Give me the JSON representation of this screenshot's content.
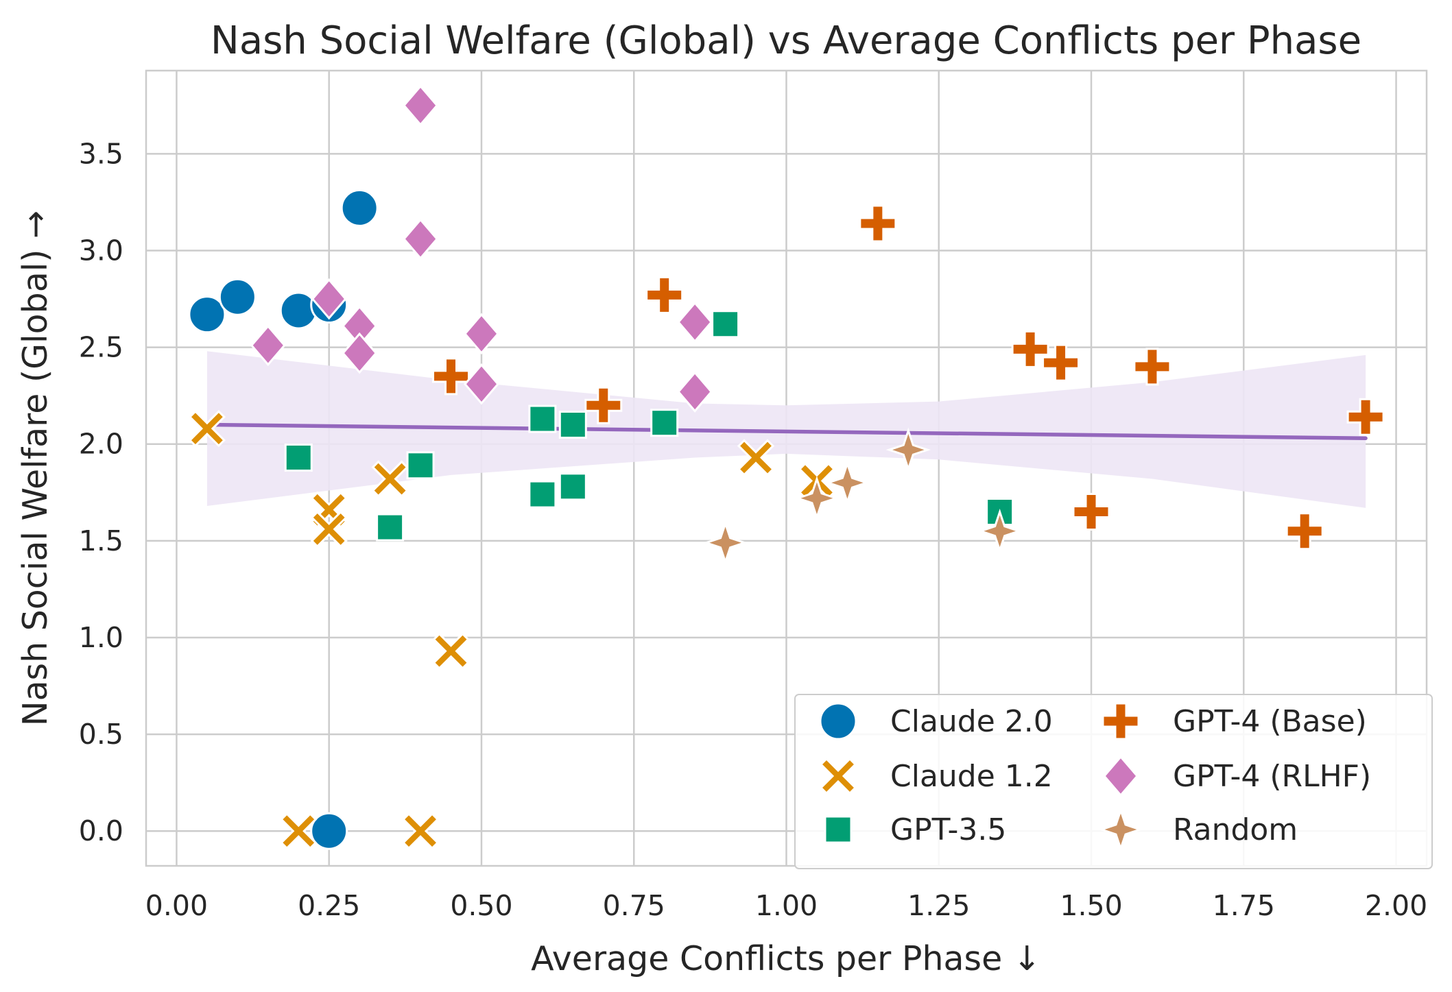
{
  "chart_data": {
    "type": "scatter",
    "title": "Nash Social Welfare (Global) vs Average Conflicts per Phase",
    "xlabel": "Average Conflicts per Phase ↓",
    "ylabel": "Nash Social Welfare (Global) →",
    "xlim": [
      -0.05,
      2.05
    ],
    "ylim": [
      -0.18,
      3.93
    ],
    "xticks": [
      "0.00",
      "0.25",
      "0.50",
      "0.75",
      "1.00",
      "1.25",
      "1.50",
      "1.75",
      "2.00"
    ],
    "yticks": [
      "0.0",
      "0.5",
      "1.0",
      "1.5",
      "2.0",
      "2.5",
      "3.0",
      "3.5"
    ],
    "grid": true,
    "legend_position": "lower-right",
    "legend_columns": 2,
    "series": [
      {
        "name": "Claude 2.0",
        "marker": "circle",
        "color": "#0173b2",
        "points": [
          [
            0.05,
            2.67
          ],
          [
            0.1,
            2.76
          ],
          [
            0.2,
            2.69
          ],
          [
            0.25,
            2.72
          ],
          [
            0.3,
            3.22
          ],
          [
            0.25,
            0.0
          ]
        ]
      },
      {
        "name": "Claude 1.2",
        "marker": "x",
        "color": "#de8f05",
        "points": [
          [
            0.05,
            2.08
          ],
          [
            0.2,
            0.0
          ],
          [
            0.25,
            1.66
          ],
          [
            0.25,
            1.56
          ],
          [
            0.35,
            1.82
          ],
          [
            0.4,
            0.0
          ],
          [
            0.45,
            0.93
          ],
          [
            0.95,
            1.93
          ],
          [
            1.05,
            1.81
          ]
        ]
      },
      {
        "name": "GPT-3.5",
        "marker": "square",
        "color": "#029e73",
        "points": [
          [
            0.2,
            1.93
          ],
          [
            0.35,
            1.57
          ],
          [
            0.4,
            1.89
          ],
          [
            0.6,
            2.13
          ],
          [
            0.6,
            1.74
          ],
          [
            0.65,
            2.1
          ],
          [
            0.65,
            1.78
          ],
          [
            0.8,
            2.11
          ],
          [
            0.9,
            2.62
          ],
          [
            1.35,
            1.65
          ]
        ]
      },
      {
        "name": "GPT-4 (Base)",
        "marker": "plus",
        "color": "#d55e00",
        "points": [
          [
            0.45,
            2.35
          ],
          [
            0.7,
            2.2
          ],
          [
            0.8,
            2.77
          ],
          [
            1.15,
            3.14
          ],
          [
            1.4,
            2.49
          ],
          [
            1.45,
            2.42
          ],
          [
            1.5,
            1.65
          ],
          [
            1.6,
            2.4
          ],
          [
            1.85,
            1.55
          ],
          [
            1.95,
            2.14
          ]
        ]
      },
      {
        "name": "GPT-4 (RLHF)",
        "marker": "diamond",
        "color": "#cc78bc",
        "points": [
          [
            0.15,
            2.51
          ],
          [
            0.25,
            2.75
          ],
          [
            0.3,
            2.61
          ],
          [
            0.3,
            2.47
          ],
          [
            0.4,
            3.75
          ],
          [
            0.4,
            3.06
          ],
          [
            0.5,
            2.57
          ],
          [
            0.5,
            2.31
          ],
          [
            0.85,
            2.63
          ],
          [
            0.85,
            2.27
          ]
        ]
      },
      {
        "name": "Random",
        "marker": "star4",
        "color": "#ca9161",
        "points": [
          [
            0.9,
            1.49
          ],
          [
            1.05,
            1.72
          ],
          [
            1.1,
            1.8
          ],
          [
            1.2,
            1.97
          ],
          [
            1.35,
            1.55
          ]
        ]
      }
    ],
    "regression": {
      "color": "#9467bd",
      "band_color": "#ede6f5",
      "line": [
        [
          0.05,
          2.1
        ],
        [
          1.95,
          2.03
        ]
      ],
      "ci_upper": [
        [
          0.05,
          2.48
        ],
        [
          0.45,
          2.33
        ],
        [
          0.85,
          2.21
        ],
        [
          1.0,
          2.2
        ],
        [
          1.25,
          2.22
        ],
        [
          1.6,
          2.32
        ],
        [
          1.95,
          2.46
        ]
      ],
      "ci_lower": [
        [
          0.05,
          1.68
        ],
        [
          0.45,
          1.84
        ],
        [
          0.85,
          1.93
        ],
        [
          1.0,
          1.95
        ],
        [
          1.25,
          1.92
        ],
        [
          1.6,
          1.82
        ],
        [
          1.95,
          1.67
        ]
      ]
    }
  }
}
